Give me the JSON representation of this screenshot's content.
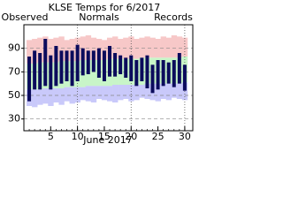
{
  "chart_data": {
    "type": "temperature-range",
    "title": "KLSE Temps for 6/2017",
    "x_label": "June 2017",
    "legend": [
      "Observed",
      "Normals",
      "Records"
    ],
    "legend_colors": [
      "#0b0b5c",
      "#2e9a2e",
      "#b79be8"
    ],
    "x": [
      1,
      2,
      3,
      4,
      5,
      6,
      7,
      8,
      9,
      10,
      11,
      12,
      13,
      14,
      15,
      16,
      17,
      18,
      19,
      20,
      21,
      22,
      23,
      24,
      25,
      26,
      27,
      28,
      29,
      30
    ],
    "series": [
      {
        "name": "Record High",
        "color": "#f7c8c8",
        "values": [
          97,
          98,
          99,
          100,
          98,
          99,
          100,
          97,
          98,
          99,
          100,
          101,
          99,
          98,
          97,
          99,
          100,
          98,
          99,
          100,
          98,
          99,
          100,
          99,
          98,
          100,
          99,
          101,
          100,
          99
        ]
      },
      {
        "name": "Normal High",
        "color": "#c8f5c8",
        "values": [
          77,
          77,
          78,
          78,
          78,
          78,
          79,
          79,
          79,
          79,
          80,
          80,
          80,
          80,
          80,
          81,
          81,
          81,
          81,
          81,
          81,
          82,
          82,
          82,
          82,
          82,
          82,
          82,
          82,
          83
        ]
      },
      {
        "name": "Normal Low",
        "color": "#c9c9fa",
        "values": [
          55,
          55,
          55,
          56,
          56,
          56,
          56,
          57,
          57,
          57,
          57,
          58,
          58,
          58,
          58,
          58,
          59,
          59,
          59,
          59,
          59,
          59,
          60,
          60,
          60,
          60,
          60,
          60,
          60,
          61
        ]
      },
      {
        "name": "Record Low",
        "values": [
          41,
          40,
          42,
          43,
          41,
          44,
          42,
          45,
          43,
          44,
          46,
          45,
          44,
          47,
          46,
          45,
          44,
          46,
          47,
          45,
          46,
          48,
          47,
          46,
          45,
          47,
          46,
          48,
          47,
          46
        ]
      },
      {
        "name": "Observed High",
        "color": "#0b0b5c",
        "values": [
          83,
          88,
          86,
          98,
          84,
          92,
          88,
          88,
          88,
          93,
          90,
          88,
          88,
          90,
          88,
          92,
          86,
          84,
          82,
          84,
          80,
          82,
          84,
          76,
          80,
          80,
          78,
          80,
          86,
          76
        ]
      },
      {
        "name": "Observed Low",
        "values": [
          45,
          55,
          55,
          58,
          55,
          58,
          60,
          62,
          58,
          62,
          67,
          68,
          70,
          65,
          62,
          66,
          66,
          68,
          65,
          62,
          58,
          62,
          56,
          52,
          55,
          58,
          60,
          57,
          60,
          54
        ]
      }
    ],
    "xlim": [
      0,
      31.5
    ],
    "xticks": [
      5,
      10,
      15,
      20,
      25,
      30
    ],
    "xgrid": [
      10,
      20,
      30
    ],
    "ylim": [
      20,
      110
    ],
    "yticks": [
      30,
      50,
      70,
      90
    ],
    "grid": true
  }
}
